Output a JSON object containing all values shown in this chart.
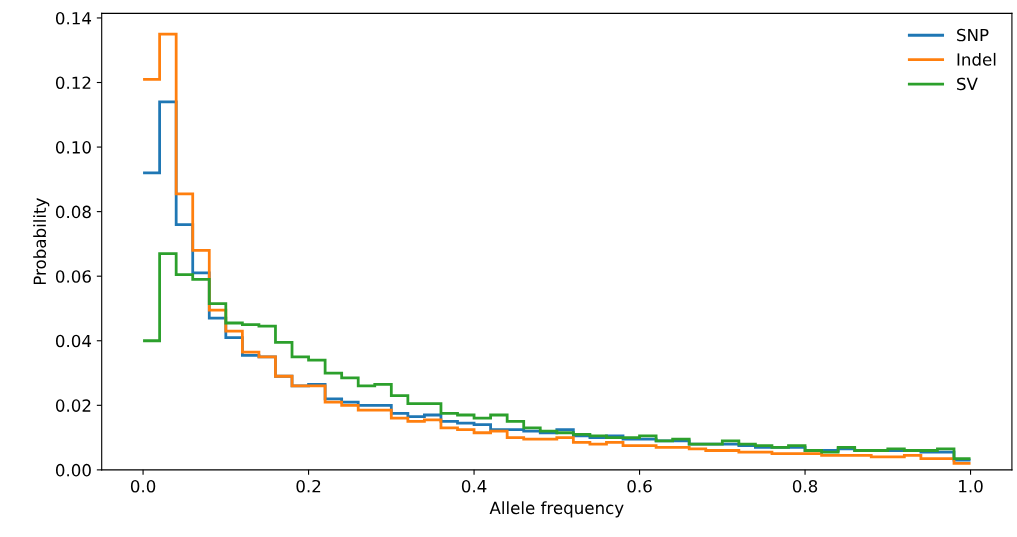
{
  "chart_data": {
    "type": "histogram",
    "xlabel": "Allele frequency",
    "ylabel": "Probability",
    "bins": [
      0.0,
      0.02,
      0.04,
      0.06,
      0.08,
      0.1,
      0.12,
      0.14,
      0.16,
      0.18,
      0.2,
      0.22,
      0.24,
      0.26,
      0.28,
      0.3,
      0.32,
      0.34,
      0.36,
      0.38,
      0.4,
      0.42,
      0.44,
      0.46,
      0.48,
      0.5,
      0.52,
      0.54,
      0.56,
      0.58,
      0.6,
      0.62,
      0.64,
      0.66,
      0.68,
      0.7,
      0.72,
      0.74,
      0.76,
      0.78,
      0.8,
      0.82,
      0.84,
      0.86,
      0.88,
      0.9,
      0.92,
      0.94,
      0.96,
      0.98,
      1.0
    ],
    "series": [
      {
        "name": "SNP",
        "color": "#1f77b4",
        "values": [
          0.092,
          0.114,
          0.076,
          0.061,
          0.047,
          0.041,
          0.0355,
          0.035,
          0.029,
          0.026,
          0.0265,
          0.022,
          0.021,
          0.02,
          0.02,
          0.0175,
          0.0165,
          0.017,
          0.015,
          0.0145,
          0.014,
          0.0125,
          0.0125,
          0.012,
          0.0115,
          0.0125,
          0.0105,
          0.01,
          0.0105,
          0.0095,
          0.0095,
          0.009,
          0.009,
          0.008,
          0.008,
          0.008,
          0.0075,
          0.007,
          0.007,
          0.007,
          0.006,
          0.006,
          0.0065,
          0.006,
          0.006,
          0.006,
          0.006,
          0.0055,
          0.0055,
          0.003
        ]
      },
      {
        "name": "Indel",
        "color": "#ff7f0e",
        "values": [
          0.121,
          0.135,
          0.0855,
          0.068,
          0.0495,
          0.043,
          0.0365,
          0.035,
          0.029,
          0.026,
          0.026,
          0.021,
          0.02,
          0.0185,
          0.0185,
          0.016,
          0.015,
          0.0155,
          0.013,
          0.0125,
          0.0115,
          0.012,
          0.01,
          0.0095,
          0.0095,
          0.01,
          0.0085,
          0.008,
          0.0085,
          0.0075,
          0.0075,
          0.007,
          0.007,
          0.0065,
          0.006,
          0.006,
          0.0055,
          0.0055,
          0.005,
          0.005,
          0.005,
          0.0045,
          0.0045,
          0.0045,
          0.004,
          0.004,
          0.0045,
          0.0035,
          0.0035,
          0.002
        ]
      },
      {
        "name": "SV",
        "color": "#2ca02c",
        "values": [
          0.04,
          0.067,
          0.0605,
          0.059,
          0.0515,
          0.0455,
          0.045,
          0.0445,
          0.0395,
          0.035,
          0.034,
          0.03,
          0.0285,
          0.026,
          0.0265,
          0.023,
          0.0205,
          0.0205,
          0.0175,
          0.017,
          0.016,
          0.017,
          0.015,
          0.013,
          0.012,
          0.0115,
          0.011,
          0.0105,
          0.01,
          0.01,
          0.0105,
          0.009,
          0.0095,
          0.008,
          0.008,
          0.009,
          0.008,
          0.0075,
          0.007,
          0.0075,
          0.006,
          0.0055,
          0.007,
          0.006,
          0.006,
          0.0065,
          0.006,
          0.006,
          0.0065,
          0.0035
        ]
      }
    ],
    "xlim": [
      -0.05,
      1.05
    ],
    "xticks": [
      {
        "value": 0,
        "label": "0.0"
      },
      0.2,
      0.4,
      0.6,
      0.8,
      {
        "value": 1,
        "label": "1.0"
      }
    ],
    "ylim": [
      0,
      0.1414
    ],
    "yticks": [
      {
        "value": 0,
        "label": "0.00"
      },
      {
        "value": 0.02,
        "label": "0.02"
      },
      {
        "value": 0.04,
        "label": "0.04"
      },
      {
        "value": 0.06,
        "label": "0.06"
      },
      {
        "value": 0.08,
        "label": "0.08"
      },
      {
        "value": 0.1,
        "label": "0.10"
      },
      {
        "value": 0.12,
        "label": "0.12"
      },
      {
        "value": 0.14,
        "label": "0.14"
      }
    ],
    "legend": "top right",
    "grid": false
  }
}
